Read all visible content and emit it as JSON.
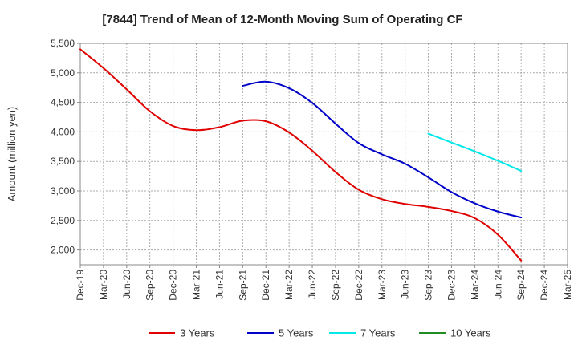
{
  "chart_data": {
    "type": "line",
    "title": "[7844]  Trend of Mean of 12-Month Moving Sum of Operating CF",
    "xlabel": "",
    "ylabel": "Amount (million yen)",
    "ylim": [
      1750,
      5500
    ],
    "y_ticks": [
      2000,
      2500,
      3000,
      3500,
      4000,
      4500,
      5000,
      5500
    ],
    "y_tick_labels": [
      "2,000",
      "2,500",
      "3,000",
      "3,500",
      "4,000",
      "4,500",
      "5,000",
      "5,500"
    ],
    "categories": [
      "Dec-19",
      "Mar-20",
      "Jun-20",
      "Sep-20",
      "Dec-20",
      "Mar-21",
      "Jun-21",
      "Sep-21",
      "Dec-21",
      "Mar-22",
      "Jun-22",
      "Sep-22",
      "Dec-22",
      "Mar-23",
      "Jun-23",
      "Sep-23",
      "Dec-23",
      "Mar-24",
      "Jun-24",
      "Sep-24",
      "Dec-24",
      "Mar-25"
    ],
    "x_labels": [
      "Dec-19",
      "Mar-20",
      "Jun-20",
      "Sep-20",
      "Dec-20",
      "Mar-21",
      "Jun-21",
      "Sep-21",
      "Dec-21",
      "Mar-22",
      "Jun-22",
      "Sep-22",
      "Dec-22",
      "Mar-23",
      "Jun-23",
      "Sep-23",
      "Dec-23",
      "Mar-24",
      "Jun-24",
      "Sep-24",
      "Dec-24",
      "Mar-25"
    ],
    "grid": true,
    "series": [
      {
        "name": "3 Years",
        "color": "#e00000",
        "values": [
          5400,
          5080,
          4720,
          4350,
          4100,
          4030,
          4080,
          4190,
          4180,
          3990,
          3680,
          3320,
          3020,
          2860,
          2780,
          2730,
          2660,
          2540,
          2260,
          1820,
          null,
          null
        ]
      },
      {
        "name": "5 Years",
        "color": "#0000c8",
        "values": [
          null,
          null,
          null,
          null,
          null,
          null,
          null,
          4780,
          4850,
          4740,
          4490,
          4140,
          3810,
          3620,
          3460,
          3230,
          2980,
          2790,
          2650,
          2550,
          null,
          null
        ]
      },
      {
        "name": "7 Years",
        "color": "#00e8e8",
        "values": [
          null,
          null,
          null,
          null,
          null,
          null,
          null,
          null,
          null,
          null,
          null,
          null,
          null,
          null,
          null,
          3970,
          3820,
          3670,
          3510,
          3340,
          null,
          null
        ]
      },
      {
        "name": "10 Years",
        "color": "#228b22",
        "values": [
          null,
          null,
          null,
          null,
          null,
          null,
          null,
          null,
          null,
          null,
          null,
          null,
          null,
          null,
          null,
          null,
          null,
          null,
          null,
          null,
          null,
          null
        ]
      }
    ],
    "legend": "bottom"
  }
}
